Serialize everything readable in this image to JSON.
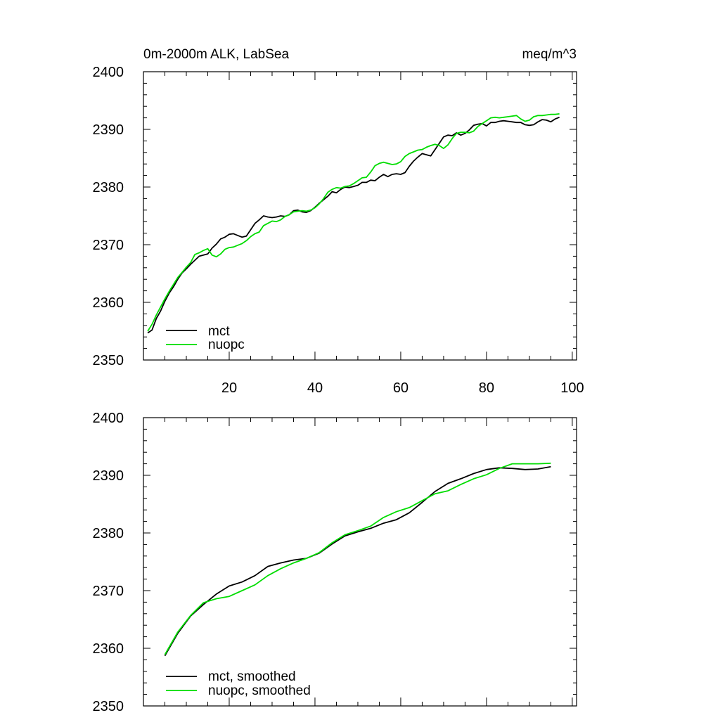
{
  "chart_data": [
    {
      "type": "line",
      "title": "0m-2000m ALK, LabSea",
      "units": "meq/m^3",
      "ylim": [
        2350,
        2400
      ],
      "xlim": [
        0,
        101
      ],
      "yticks": [
        "2350",
        "2360",
        "2370",
        "2380",
        "2390",
        "2400"
      ],
      "xticks": [
        "20",
        "40",
        "60",
        "80",
        "100"
      ],
      "legend_position": "bottom-left",
      "series": [
        {
          "name": "mct",
          "color": "#000000",
          "points": [
            [
              1,
              2354.7
            ],
            [
              2,
              2355.2
            ],
            [
              3,
              2357.2
            ],
            [
              4,
              2358.5
            ],
            [
              5,
              2360.2
            ],
            [
              6,
              2361.6
            ],
            [
              7,
              2362.7
            ],
            [
              8,
              2364.0
            ],
            [
              9,
              2365.1
            ],
            [
              10,
              2365.8
            ],
            [
              11,
              2366.6
            ],
            [
              12,
              2367.3
            ],
            [
              13,
              2368.0
            ],
            [
              14,
              2368.2
            ],
            [
              15,
              2368.4
            ],
            [
              16,
              2369.4
            ],
            [
              17,
              2370.1
            ],
            [
              18,
              2371.0
            ],
            [
              19,
              2371.3
            ],
            [
              20,
              2371.8
            ],
            [
              21,
              2371.9
            ],
            [
              22,
              2371.6
            ],
            [
              23,
              2371.3
            ],
            [
              24,
              2371.5
            ],
            [
              25,
              2372.6
            ],
            [
              26,
              2373.7
            ],
            [
              27,
              2374.3
            ],
            [
              28,
              2375.0
            ],
            [
              29,
              2374.8
            ],
            [
              30,
              2374.7
            ],
            [
              31,
              2374.8
            ],
            [
              32,
              2375.0
            ],
            [
              33,
              2374.9
            ],
            [
              34,
              2375.2
            ],
            [
              35,
              2375.9
            ],
            [
              36,
              2376.0
            ],
            [
              37,
              2375.7
            ],
            [
              38,
              2375.6
            ],
            [
              39,
              2375.9
            ],
            [
              40,
              2376.5
            ],
            [
              41,
              2377.2
            ],
            [
              42,
              2377.8
            ],
            [
              43,
              2378.4
            ],
            [
              44,
              2379.2
            ],
            [
              45,
              2379.0
            ],
            [
              46,
              2379.6
            ],
            [
              47,
              2380.0
            ],
            [
              48,
              2379.9
            ],
            [
              49,
              2380.1
            ],
            [
              50,
              2380.3
            ],
            [
              51,
              2380.8
            ],
            [
              52,
              2380.8
            ],
            [
              53,
              2381.2
            ],
            [
              54,
              2381.1
            ],
            [
              55,
              2381.7
            ],
            [
              56,
              2382.2
            ],
            [
              57,
              2381.8
            ],
            [
              58,
              2382.2
            ],
            [
              59,
              2382.3
            ],
            [
              60,
              2382.2
            ],
            [
              61,
              2382.5
            ],
            [
              62,
              2383.6
            ],
            [
              63,
              2384.5
            ],
            [
              64,
              2385.2
            ],
            [
              65,
              2385.8
            ],
            [
              66,
              2385.6
            ],
            [
              67,
              2385.4
            ],
            [
              68,
              2386.5
            ],
            [
              69,
              2387.6
            ],
            [
              70,
              2388.7
            ],
            [
              71,
              2389.0
            ],
            [
              72,
              2388.9
            ],
            [
              73,
              2389.4
            ],
            [
              74,
              2389.0
            ],
            [
              75,
              2389.3
            ],
            [
              76,
              2389.9
            ],
            [
              77,
              2390.7
            ],
            [
              78,
              2390.9
            ],
            [
              79,
              2391.0
            ],
            [
              80,
              2390.6
            ],
            [
              81,
              2391.2
            ],
            [
              82,
              2391.2
            ],
            [
              83,
              2391.4
            ],
            [
              84,
              2391.5
            ],
            [
              85,
              2391.4
            ],
            [
              86,
              2391.3
            ],
            [
              87,
              2391.2
            ],
            [
              88,
              2391.2
            ],
            [
              89,
              2390.8
            ],
            [
              90,
              2390.7
            ],
            [
              91,
              2390.8
            ],
            [
              92,
              2391.3
            ],
            [
              93,
              2391.7
            ],
            [
              94,
              2391.6
            ],
            [
              95,
              2391.3
            ],
            [
              96,
              2391.8
            ],
            [
              97,
              2392.1
            ]
          ]
        },
        {
          "name": "nuopc",
          "color": "#00dd00",
          "points": [
            [
              1,
              2355.0
            ],
            [
              2,
              2356.2
            ],
            [
              3,
              2357.8
            ],
            [
              4,
              2359.2
            ],
            [
              5,
              2360.6
            ],
            [
              6,
              2361.9
            ],
            [
              7,
              2363.1
            ],
            [
              8,
              2364.3
            ],
            [
              9,
              2365.2
            ],
            [
              10,
              2366.1
            ],
            [
              11,
              2366.9
            ],
            [
              12,
              2368.3
            ],
            [
              13,
              2368.6
            ],
            [
              14,
              2369.0
            ],
            [
              15,
              2369.3
            ],
            [
              16,
              2368.2
            ],
            [
              17,
              2367.9
            ],
            [
              18,
              2368.4
            ],
            [
              19,
              2369.2
            ],
            [
              20,
              2369.5
            ],
            [
              21,
              2369.6
            ],
            [
              22,
              2369.9
            ],
            [
              23,
              2370.2
            ],
            [
              24,
              2370.7
            ],
            [
              25,
              2371.4
            ],
            [
              26,
              2371.9
            ],
            [
              27,
              2372.2
            ],
            [
              28,
              2373.3
            ],
            [
              29,
              2373.7
            ],
            [
              30,
              2374.1
            ],
            [
              31,
              2374.0
            ],
            [
              32,
              2374.3
            ],
            [
              33,
              2374.9
            ],
            [
              34,
              2375.2
            ],
            [
              35,
              2375.7
            ],
            [
              36,
              2375.8
            ],
            [
              37,
              2375.9
            ],
            [
              38,
              2375.8
            ],
            [
              39,
              2376.0
            ],
            [
              40,
              2376.4
            ],
            [
              41,
              2377.1
            ],
            [
              42,
              2378.0
            ],
            [
              43,
              2379.1
            ],
            [
              44,
              2379.6
            ],
            [
              45,
              2379.9
            ],
            [
              46,
              2379.8
            ],
            [
              47,
              2380.1
            ],
            [
              48,
              2380.2
            ],
            [
              49,
              2380.6
            ],
            [
              50,
              2381.1
            ],
            [
              51,
              2381.6
            ],
            [
              52,
              2381.7
            ],
            [
              53,
              2382.6
            ],
            [
              54,
              2383.7
            ],
            [
              55,
              2384.1
            ],
            [
              56,
              2384.3
            ],
            [
              57,
              2384.1
            ],
            [
              58,
              2383.9
            ],
            [
              59,
              2384.0
            ],
            [
              60,
              2384.4
            ],
            [
              61,
              2385.3
            ],
            [
              62,
              2385.8
            ],
            [
              63,
              2386.1
            ],
            [
              64,
              2386.4
            ],
            [
              65,
              2386.5
            ],
            [
              66,
              2386.9
            ],
            [
              67,
              2387.2
            ],
            [
              68,
              2387.4
            ],
            [
              69,
              2387.2
            ],
            [
              70,
              2386.7
            ],
            [
              71,
              2387.3
            ],
            [
              72,
              2388.4
            ],
            [
              73,
              2389.3
            ],
            [
              74,
              2389.5
            ],
            [
              75,
              2389.5
            ],
            [
              76,
              2389.4
            ],
            [
              77,
              2389.7
            ],
            [
              78,
              2390.5
            ],
            [
              79,
              2391.0
            ],
            [
              80,
              2391.5
            ],
            [
              81,
              2392.0
            ],
            [
              82,
              2392.1
            ],
            [
              83,
              2392.0
            ],
            [
              84,
              2392.1
            ],
            [
              85,
              2392.2
            ],
            [
              86,
              2392.3
            ],
            [
              87,
              2392.4
            ],
            [
              88,
              2391.8
            ],
            [
              89,
              2391.4
            ],
            [
              90,
              2391.6
            ],
            [
              91,
              2392.2
            ],
            [
              92,
              2392.4
            ],
            [
              93,
              2392.4
            ],
            [
              94,
              2392.5
            ],
            [
              95,
              2392.6
            ],
            [
              96,
              2392.6
            ],
            [
              97,
              2392.7
            ]
          ]
        }
      ]
    },
    {
      "type": "line",
      "ylim": [
        2350,
        2400
      ],
      "xlim": [
        0,
        101
      ],
      "yticks": [
        "2350",
        "2360",
        "2370",
        "2380",
        "2390",
        "2400"
      ],
      "legend_position": "bottom-left",
      "series": [
        {
          "name": "mct, smoothed",
          "color": "#000000",
          "points": [
            [
              5,
              2358.7
            ],
            [
              8,
              2362.6
            ],
            [
              11,
              2365.6
            ],
            [
              14,
              2367.6
            ],
            [
              17,
              2369.4
            ],
            [
              20,
              2370.8
            ],
            [
              23,
              2371.5
            ],
            [
              26,
              2372.6
            ],
            [
              29,
              2374.2
            ],
            [
              32,
              2374.8
            ],
            [
              35,
              2375.3
            ],
            [
              38,
              2375.6
            ],
            [
              41,
              2376.5
            ],
            [
              44,
              2378.1
            ],
            [
              47,
              2379.5
            ],
            [
              50,
              2380.2
            ],
            [
              53,
              2380.8
            ],
            [
              56,
              2381.7
            ],
            [
              59,
              2382.3
            ],
            [
              62,
              2383.5
            ],
            [
              65,
              2385.3
            ],
            [
              68,
              2387.2
            ],
            [
              71,
              2388.6
            ],
            [
              74,
              2389.4
            ],
            [
              77,
              2390.3
            ],
            [
              80,
              2391.0
            ],
            [
              83,
              2391.3
            ],
            [
              86,
              2391.2
            ],
            [
              89,
              2391.0
            ],
            [
              92,
              2391.1
            ],
            [
              95,
              2391.5
            ]
          ]
        },
        {
          "name": "nuopc, smoothed",
          "color": "#00dd00",
          "points": [
            [
              5,
              2358.9
            ],
            [
              8,
              2362.8
            ],
            [
              11,
              2365.7
            ],
            [
              14,
              2367.9
            ],
            [
              17,
              2368.6
            ],
            [
              20,
              2369.0
            ],
            [
              23,
              2370.0
            ],
            [
              26,
              2371.0
            ],
            [
              29,
              2372.6
            ],
            [
              32,
              2373.8
            ],
            [
              35,
              2374.8
            ],
            [
              38,
              2375.6
            ],
            [
              41,
              2376.6
            ],
            [
              44,
              2378.3
            ],
            [
              47,
              2379.7
            ],
            [
              50,
              2380.4
            ],
            [
              53,
              2381.2
            ],
            [
              56,
              2382.7
            ],
            [
              59,
              2383.7
            ],
            [
              62,
              2384.4
            ],
            [
              65,
              2385.6
            ],
            [
              68,
              2386.8
            ],
            [
              71,
              2387.3
            ],
            [
              74,
              2388.4
            ],
            [
              77,
              2389.4
            ],
            [
              80,
              2390.1
            ],
            [
              83,
              2391.2
            ],
            [
              86,
              2392.0
            ],
            [
              89,
              2392.0
            ],
            [
              92,
              2392.0
            ],
            [
              95,
              2392.1
            ]
          ]
        }
      ]
    }
  ]
}
